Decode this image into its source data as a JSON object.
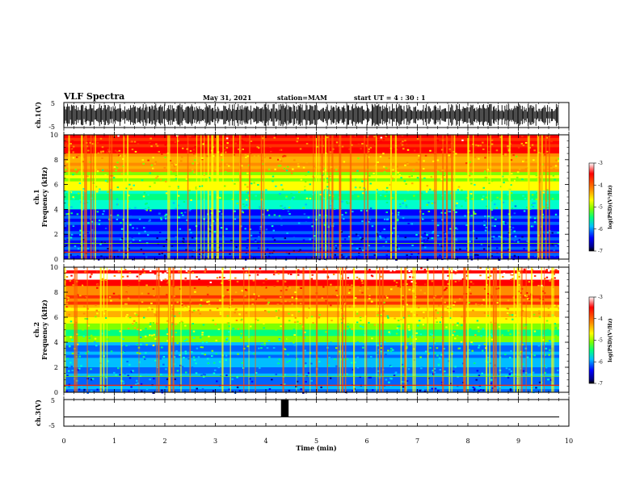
{
  "header": {
    "title": "VLF Spectra",
    "date": "May 31, 2021",
    "station": "station=MAM",
    "start": "start  UT =   4 : 30 : 1"
  },
  "chart_data": [
    {
      "type": "line",
      "panel": "ch1-waveform",
      "ylabel": "ch.1(V)",
      "ylim": [
        -5,
        5
      ],
      "yticks": [
        "5",
        "-5"
      ],
      "xlim": [
        0,
        10
      ]
    },
    {
      "type": "heatmap",
      "panel": "ch1-spectrogram",
      "ylabel": "ch.1\nFrequency  (kHz)",
      "ylabel_line1": "ch.1",
      "ylabel_line2": "Frequency  (kHz)",
      "ylim": [
        0,
        10
      ],
      "yticks": [
        "0",
        "2",
        "4",
        "6",
        "8",
        "10"
      ],
      "colorbar": {
        "label": "log(PSD)(V²/Hz)",
        "range": [
          -7,
          -3
        ],
        "ticks": [
          "-3",
          "-4",
          "-5",
          "-6",
          "-7"
        ]
      }
    },
    {
      "type": "heatmap",
      "panel": "ch2-spectrogram",
      "ylabel_line1": "ch.2",
      "ylabel_line2": "Frequency  (kHz)",
      "ylim": [
        0,
        10
      ],
      "yticks": [
        "0",
        "2",
        "4",
        "6",
        "8",
        "10"
      ],
      "colorbar": {
        "label": "log(PSD)(V²/Hz)",
        "range": [
          -7,
          -3
        ],
        "ticks": [
          "-3",
          "-4",
          "-5",
          "-6",
          "-7"
        ]
      }
    },
    {
      "type": "line",
      "panel": "ch3-waveform",
      "ylabel": "ch.3(V)",
      "ylim": [
        -5,
        5
      ],
      "yticks": [
        "5",
        "-5"
      ],
      "xlabel": "Time  (min)",
      "xlim": [
        0,
        10
      ],
      "xticks": [
        "0",
        "1",
        "2",
        "3",
        "4",
        "5",
        "6",
        "7",
        "8",
        "9",
        "10"
      ],
      "pulse": {
        "start_min": 4.3,
        "end_min": 4.45,
        "level_v": 5
      },
      "baseline_v": -1.5
    }
  ],
  "colors": {
    "axis": "#000000",
    "colormap": [
      "#000000",
      "#00008b",
      "#0000ff",
      "#00bfff",
      "#00ff7f",
      "#7fff00",
      "#ffff00",
      "#ff8c00",
      "#ff0000",
      "#ffffff"
    ]
  }
}
